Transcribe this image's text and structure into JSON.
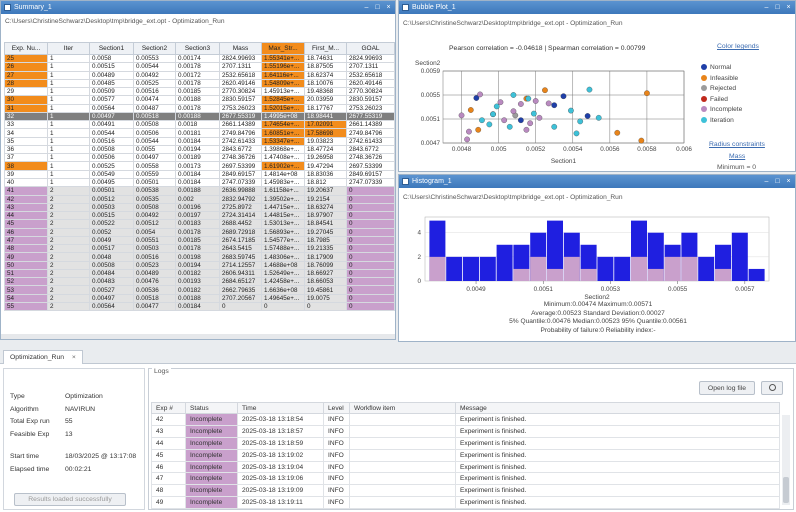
{
  "summary": {
    "title": "Summary_1",
    "columns": [
      "Exp. Nu...",
      "Iter",
      "Section1",
      "Section2",
      "Section3",
      "Mass",
      "Max_Str...",
      "First_M...",
      "GOAL"
    ],
    "rows": [
      [
        "25",
        "1",
        "0.0058",
        "0.00553",
        "0.00174",
        "2824.99693",
        "1.55341e+...",
        "18.74631",
        "2824.99693"
      ],
      [
        "26",
        "1",
        "0.00515",
        "0.00544",
        "0.00178",
        "2707.1311",
        "1.55196e+...",
        "18.87505",
        "2707.1311"
      ],
      [
        "27",
        "1",
        "0.00489",
        "0.00492",
        "0.00172",
        "2532.65618",
        "1.64116e+...",
        "18.62374",
        "2532.65618"
      ],
      [
        "28",
        "1",
        "0.00485",
        "0.00525",
        "0.00178",
        "2620.49146",
        "1.54809e+...",
        "18.10076",
        "2620.49146"
      ],
      [
        "29",
        "1",
        "0.00509",
        "0.00516",
        "0.00185",
        "2770.30824",
        "1.45913e+...",
        "19.48368",
        "2770.30824"
      ],
      [
        "30",
        "1",
        "0.00577",
        "0.00474",
        "0.00188",
        "2830.59157",
        "1.52845e+...",
        "20.03959",
        "2830.59157"
      ],
      [
        "31",
        "1",
        "0.00564",
        "0.00487",
        "0.00178",
        "2753.26023",
        "1.52015e+...",
        "18.17767",
        "2753.26023"
      ],
      [
        "32",
        "1",
        "0.00497",
        "0.00518",
        "0.00188",
        "2677.55319",
        "1.4995e+08",
        "18.98441",
        "2677.55319"
      ],
      [
        "33",
        "1",
        "0.00491",
        "0.00508",
        "0.0018",
        "2661.14389",
        "1.74654e+...",
        "17.02091",
        "2661.14389"
      ],
      [
        "34",
        "1",
        "0.00544",
        "0.00506",
        "0.00181",
        "2749.84796",
        "1.60851e+...",
        "17.58698",
        "2749.84796"
      ],
      [
        "35",
        "1",
        "0.00516",
        "0.00544",
        "0.00184",
        "2742.61433",
        "1.53347e+...",
        "19.03823",
        "2742.61433"
      ],
      [
        "36",
        "1",
        "0.00508",
        "0.0055",
        "0.00194",
        "2843.6772",
        "1.39868e+...",
        "18.47724",
        "2843.6772"
      ],
      [
        "37",
        "1",
        "0.00506",
        "0.00497",
        "0.00189",
        "2748.36726",
        "1.47408e+...",
        "19.26958",
        "2748.36726"
      ],
      [
        "38",
        "1",
        "0.00525",
        "0.00558",
        "0.00173",
        "2697.53399",
        "1.61902e+...",
        "19.47294",
        "2697.53399"
      ],
      [
        "39",
        "1",
        "0.00549",
        "0.00559",
        "0.00184",
        "2849.69157",
        "1.4814e+08",
        "18.83036",
        "2849.69157"
      ],
      [
        "40",
        "1",
        "0.00495",
        "0.00501",
        "0.00184",
        "2747.07339",
        "1.45983e+...",
        "18.812",
        "2747.07339"
      ],
      [
        "41",
        "2",
        "0.00501",
        "0.00538",
        "0.00188",
        "2636.99888",
        "1.61158e+...",
        "19.20637",
        "0"
      ],
      [
        "42",
        "2",
        "0.00512",
        "0.00535",
        "0.002",
        "2832.94792",
        "1.39502e+...",
        "19.2154",
        "0"
      ],
      [
        "43",
        "2",
        "0.00503",
        "0.00508",
        "0.00196",
        "2725.8972",
        "1.44715e+...",
        "18.63274",
        "0"
      ],
      [
        "44",
        "2",
        "0.00515",
        "0.00492",
        "0.00197",
        "2724.31414",
        "1.44815e+...",
        "18.97907",
        "0"
      ],
      [
        "45",
        "2",
        "0.00522",
        "0.00512",
        "0.00183",
        "2688.4452",
        "1.53013e+...",
        "18.84541",
        "0"
      ],
      [
        "46",
        "2",
        "0.0052",
        "0.0054",
        "0.00178",
        "2689.72918",
        "1.56893e+...",
        "19.27045",
        "0"
      ],
      [
        "47",
        "2",
        "0.0049",
        "0.00551",
        "0.00185",
        "2674.17185",
        "1.54577e+...",
        "18.7985",
        "0"
      ],
      [
        "48",
        "2",
        "0.00517",
        "0.00503",
        "0.00178",
        "2643.5415",
        "1.57488e+...",
        "19.21335",
        "0"
      ],
      [
        "49",
        "2",
        "0.0048",
        "0.00516",
        "0.00198",
        "2683.59745",
        "1.48306e+...",
        "18.17909",
        "0"
      ],
      [
        "50",
        "2",
        "0.00508",
        "0.00523",
        "0.00194",
        "2714.12557",
        "1.4688e+08",
        "18.76099",
        "0"
      ],
      [
        "51",
        "2",
        "0.00484",
        "0.00489",
        "0.00182",
        "2606.94311",
        "1.52649e+...",
        "18.66927",
        "0"
      ],
      [
        "52",
        "2",
        "0.00483",
        "0.00476",
        "0.00193",
        "2684.65127",
        "1.42458e+...",
        "18.66053",
        "0"
      ],
      [
        "53",
        "2",
        "0.00527",
        "0.00536",
        "0.00182",
        "2662.79635",
        "1.6636e+08",
        "19.45861",
        "0"
      ],
      [
        "54",
        "2",
        "0.00497",
        "0.00518",
        "0.00188",
        "2707.20567",
        "1.49645e+...",
        "19.0075",
        "0"
      ],
      [
        "55",
        "2",
        "0.00564",
        "0.00477",
        "0.00184",
        "0",
        "0",
        "0",
        "0"
      ]
    ],
    "orange_id_rows": [
      0,
      1,
      2,
      3,
      5,
      6,
      13
    ],
    "orange_maxstr_rows": [
      0,
      1,
      2,
      3,
      5,
      6,
      8,
      9,
      10,
      13,
      16,
      20,
      21,
      22,
      23,
      26,
      28
    ],
    "orange_first_rows": [
      8,
      9
    ],
    "selected_row": 7
  },
  "bubble": {
    "title": "Bubble Plot_1",
    "path": "C:\\Users\\ChristineSchwarz\\Desktop\\tmp\\bridge_ext.opt - Optimization_Run",
    "correlation": "Pearson correlation = -0.04618 | Spearman correlation = 0.00799",
    "ylabel": "Section2",
    "xlabel": "Section1",
    "yticks": [
      "0.0059",
      "0.0055",
      "0.0051",
      "0.0047"
    ],
    "xticks": [
      "0.0048",
      "0.005",
      "0.0052",
      "0.0054",
      "0.0056",
      "0.0058",
      "0.006"
    ],
    "legend_title": "Color legends",
    "legend": [
      {
        "label": "Normal",
        "color": "#1f3fa8"
      },
      {
        "label": "Infeasible",
        "color": "#e8841a"
      },
      {
        "label": "Rejected",
        "color": "#9c9c9c"
      },
      {
        "label": "Failed",
        "color": "#c0291c"
      },
      {
        "label": "Incomplete",
        "color": "#b98ac0"
      },
      {
        "label": "Iteration",
        "color": "#3ec1d8"
      }
    ],
    "radius_title": "Radius constraints",
    "radius_sub": "Mass",
    "radius_min": "Minimum = 0"
  },
  "histogram": {
    "title": "Histogram_1",
    "path": "C:\\Users\\ChristineSchwarz\\Desktop\\tmp\\bridge_ext.opt - Optimization_Run",
    "xlabel": "Section2",
    "yticks": [
      "0",
      "2",
      "4"
    ],
    "xticks": [
      "0.0049",
      "0.0051",
      "0.0053",
      "0.0055",
      "0.0057"
    ],
    "stats": [
      "Minimum:0.00474 Maximum:0.00571",
      "Average:0.00523 Standard Deviation:0.00027",
      "5% Quantile:0.00476 Median:0.00523 95% Quantile:0.00561",
      "Probability of failure:0 Reliability index:-"
    ]
  },
  "chart_data": [
    {
      "type": "scatter",
      "title": "Pearson correlation = -0.04618 | Spearman correlation = 0.00799",
      "xlabel": "Section1",
      "ylabel": "Section2",
      "xlim": [
        0.0047,
        0.006
      ],
      "ylim": [
        0.0047,
        0.0059
      ],
      "series": [
        {
          "name": "Normal",
          "color": "#1f3fa8",
          "points": [
            [
              0.00488,
              0.00545
            ],
            [
              0.00535,
              0.00548
            ],
            [
              0.00548,
              0.00515
            ],
            [
              0.00512,
              0.00508
            ],
            [
              0.0053,
              0.00533
            ]
          ]
        },
        {
          "name": "Infeasible",
          "color": "#e8841a",
          "points": [
            [
              0.0058,
              0.00553
            ],
            [
              0.00515,
              0.00544
            ],
            [
              0.00489,
              0.00492
            ],
            [
              0.00485,
              0.00525
            ],
            [
              0.00577,
              0.00474
            ],
            [
              0.00564,
              0.00487
            ],
            [
              0.00525,
              0.00558
            ]
          ]
        },
        {
          "name": "Rejected",
          "color": "#9c9c9c",
          "points": [
            [
              0.00509,
              0.00516
            ]
          ]
        },
        {
          "name": "Incomplete",
          "color": "#b98ac0",
          "points": [
            [
              0.00501,
              0.00538
            ],
            [
              0.00512,
              0.00535
            ],
            [
              0.00503,
              0.00508
            ],
            [
              0.00515,
              0.00492
            ],
            [
              0.00522,
              0.00512
            ],
            [
              0.0052,
              0.0054
            ],
            [
              0.0049,
              0.00551
            ],
            [
              0.00517,
              0.00503
            ],
            [
              0.0048,
              0.00516
            ],
            [
              0.00508,
              0.00523
            ],
            [
              0.00484,
              0.00489
            ],
            [
              0.00483,
              0.00476
            ],
            [
              0.00527,
              0.00536
            ],
            [
              0.00497,
              0.00518
            ]
          ]
        },
        {
          "name": "Iteration",
          "color": "#3ec1d8",
          "points": [
            [
              0.00491,
              0.00508
            ],
            [
              0.00544,
              0.00506
            ],
            [
              0.00516,
              0.00544
            ],
            [
              0.00508,
              0.0055
            ],
            [
              0.00506,
              0.00497
            ],
            [
              0.00549,
              0.00559
            ],
            [
              0.00495,
              0.00501
            ],
            [
              0.00497,
              0.00518
            ],
            [
              0.00539,
              0.00524
            ],
            [
              0.0053,
              0.00497
            ],
            [
              0.00554,
              0.00512
            ],
            [
              0.00499,
              0.00531
            ],
            [
              0.00542,
              0.00486
            ],
            [
              0.00519,
              0.00519
            ]
          ]
        }
      ]
    },
    {
      "type": "bar",
      "xlabel": "Section2",
      "ylim": [
        0,
        5.3
      ],
      "x": [
        0.00476,
        0.00481,
        0.00486,
        0.00491,
        0.00496,
        0.00501,
        0.00506,
        0.00511,
        0.00516,
        0.00521,
        0.00526,
        0.00531,
        0.00536,
        0.00541,
        0.00546,
        0.00551,
        0.00556,
        0.00561,
        0.00566,
        0.00571
      ],
      "series": [
        {
          "values": [
            5,
            2,
            2,
            2,
            3,
            3,
            4,
            5,
            4,
            3,
            2,
            2,
            5,
            4,
            3,
            4,
            2,
            3,
            4,
            1
          ]
        },
        {
          "values": [
            2,
            0,
            0,
            0,
            0,
            1,
            2,
            1,
            2,
            1,
            0,
            0,
            2,
            1,
            2,
            2,
            0,
            1,
            0,
            0
          ]
        }
      ]
    }
  ],
  "bottom": {
    "tab_label": "Optimization_Run",
    "info": [
      {
        "k": "Type",
        "v": "Optimization"
      },
      {
        "k": "Algorithm",
        "v": "NAVIRUN"
      },
      {
        "k": "Total Exp run",
        "v": "55"
      },
      {
        "k": "Feasible Exp",
        "v": "13"
      }
    ],
    "times": [
      {
        "k": "Start time",
        "v": "18/03/2025 @ 13:17:08"
      },
      {
        "k": "Elapsed time",
        "v": "00:02:21"
      }
    ],
    "results_button": "Results loaded successfully",
    "logs_title": "Logs",
    "open_log": "Open log file",
    "log_columns": [
      "Exp #",
      "Status",
      "Time",
      "Level",
      "Workflow item",
      "Message"
    ],
    "log_rows": [
      [
        "42",
        "Incomplete",
        "2025-03-18 13:18:54",
        "INFO",
        "",
        "Experiment is finished."
      ],
      [
        "43",
        "Incomplete",
        "2025-03-18 13:18:57",
        "INFO",
        "",
        "Experiment is finished."
      ],
      [
        "44",
        "Incomplete",
        "2025-03-18 13:18:59",
        "INFO",
        "",
        "Experiment is finished."
      ],
      [
        "45",
        "Incomplete",
        "2025-03-18 13:19:02",
        "INFO",
        "",
        "Experiment is finished."
      ],
      [
        "46",
        "Incomplete",
        "2025-03-18 13:19:04",
        "INFO",
        "",
        "Experiment is finished."
      ],
      [
        "47",
        "Incomplete",
        "2025-03-18 13:19:06",
        "INFO",
        "",
        "Experiment is finished."
      ],
      [
        "48",
        "Incomplete",
        "2025-03-18 13:19:09",
        "INFO",
        "",
        "Experiment is finished."
      ],
      [
        "49",
        "Incomplete",
        "2025-03-18 13:19:11",
        "INFO",
        "",
        "Experiment is finished."
      ]
    ]
  }
}
